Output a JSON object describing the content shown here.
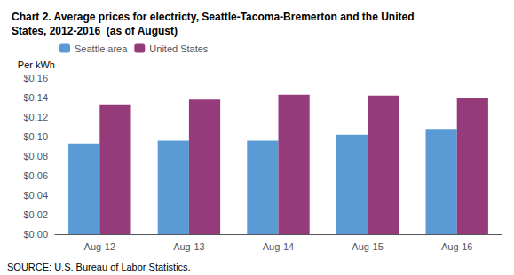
{
  "chart_data": {
    "type": "bar",
    "title": "Chart 2. Average prices for electricty, Seattle-Tacoma-Bremerton and the United\nStates, 2012-2016  (as of August)",
    "ylabel": "Per kWh",
    "source": "SOURCE: U.S. Bureau of Labor Statistics.",
    "categories": [
      "Aug-12",
      "Aug-13",
      "Aug-14",
      "Aug-15",
      "Aug-16"
    ],
    "series": [
      {
        "name": "Seattle area",
        "color": "#5B9BD5",
        "values": [
          0.093,
          0.096,
          0.096,
          0.102,
          0.108
        ]
      },
      {
        "name": "United States",
        "color": "#953B7A",
        "values": [
          0.133,
          0.138,
          0.143,
          0.142,
          0.139
        ]
      }
    ],
    "ylim": [
      0,
      0.16
    ],
    "yticks": [
      {
        "value": 0.0,
        "label": "$0.00"
      },
      {
        "value": 0.02,
        "label": "$0.02"
      },
      {
        "value": 0.04,
        "label": "$0.04"
      },
      {
        "value": 0.06,
        "label": "$0.06"
      },
      {
        "value": 0.08,
        "label": "$0.08"
      },
      {
        "value": 0.1,
        "label": "$0.10"
      },
      {
        "value": 0.12,
        "label": "$0.12"
      },
      {
        "value": 0.14,
        "label": "$0.14"
      },
      {
        "value": 0.16,
        "label": "$0.16"
      }
    ],
    "grid": false,
    "legend": "upper left"
  }
}
